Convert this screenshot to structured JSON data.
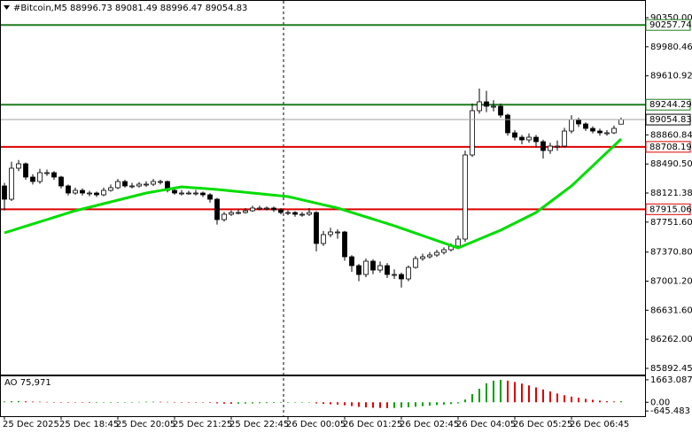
{
  "chart_data": {
    "type": "candlestick",
    "title": "#Bitcoin,M5  88996.73 89081.49 88996.47 89054.83",
    "categories": [
      "25 Dec 2025",
      null,
      null,
      null,
      null,
      null,
      null,
      null,
      "25 Dec 18:45",
      null,
      null,
      null,
      null,
      null,
      null,
      null,
      "25 Dec 20:05",
      null,
      null,
      null,
      null,
      null,
      null,
      null,
      "25 Dec 21:25",
      null,
      null,
      null,
      null,
      null,
      null,
      null,
      "25 Dec 22:45",
      null,
      null,
      null,
      null,
      null,
      null,
      null,
      "26 Dec 00:05",
      null,
      null,
      null,
      null,
      null,
      null,
      null,
      "26 Dec 01:25",
      null,
      null,
      null,
      null,
      null,
      null,
      null,
      "26 Dec 02:45",
      null,
      null,
      null,
      null,
      null,
      null,
      null,
      "26 Dec 04:05",
      null,
      null,
      null,
      null,
      null,
      null,
      null,
      "26 Dec 05:25",
      null,
      null,
      null,
      null,
      null,
      null,
      null,
      "26 Dec 06:45",
      null,
      null,
      null,
      null,
      null,
      null,
      null
    ],
    "open": [
      88211.4,
      88042.5,
      88436.5,
      88492.8,
      88323.9,
      88267.6,
      88380.2,
      88380.2,
      88323.9,
      88211.4,
      88121.3,
      88155.1,
      88121.3,
      88121.3,
      88098.8,
      88155.1,
      88188.8,
      88267.6,
      88211.4,
      88211.4,
      88233.9,
      88233.9,
      88267.6,
      88267.6,
      88155.1,
      88121.3,
      88121.3,
      88121.3,
      88121.3,
      88098.8,
      88042.5,
      87783.6,
      87851.2,
      87873.7,
      87873.7,
      87896.2,
      87930.0,
      87930.0,
      87930.0,
      87907.4,
      87873.7,
      87873.7,
      87851.2,
      87851.2,
      87873.7,
      87479.7,
      87592.3,
      87626.0,
      87626.0,
      87310.9,
      87198.3,
      87085.8,
      87254.6,
      87142.0,
      87198.3,
      87085.8,
      87085.8,
      87029.5,
      87175.8,
      87288.4,
      87310.9,
      87333.4,
      87367.2,
      87400.9,
      87446.0,
      87536.0,
      88605.3,
      89168.1,
      89280.7,
      89224.4,
      89224.4,
      89111.8,
      88886.7,
      88830.4,
      88796.7,
      88830.4,
      88774.2,
      88661.6,
      88717.9,
      88717.9,
      88909.2,
      89055.6,
      88999.3,
      88943.0,
      88909.2,
      88886.7,
      88886.7,
      88996.73
    ],
    "high": [
      88250,
      88520,
      88540,
      88510,
      88360,
      88430,
      88420,
      88400,
      88340,
      88230,
      88190,
      88180,
      88150,
      88140,
      88190,
      88230,
      88300,
      88290,
      88250,
      88260,
      88270,
      88300,
      88290,
      88280,
      88180,
      88160,
      88150,
      88160,
      88140,
      88120,
      88060,
      87880,
      87900,
      87910,
      87930,
      87960,
      87960,
      87950,
      87950,
      87930,
      87900,
      87890,
      87880,
      87930,
      87890,
      87640,
      87680,
      87660,
      87640,
      87330,
      87220,
      87290,
      87280,
      87250,
      87230,
      87150,
      87110,
      87200,
      87320,
      87350,
      87370,
      87400,
      87430,
      87480,
      87580,
      88660,
      89260,
      89450,
      89420,
      89300,
      89260,
      89130,
      88920,
      88860,
      88880,
      88860,
      88800,
      88760,
      88790,
      88950,
      89110,
      89080,
      89020,
      88970,
      88940,
      88920,
      88980,
      89081.49
    ],
    "low": [
      87900,
      88020,
      88400,
      88290,
      88230,
      88240,
      88340,
      88290,
      88180,
      88090,
      88100,
      88090,
      88080,
      88070,
      88080,
      88140,
      88170,
      88190,
      88180,
      88190,
      88200,
      88210,
      88230,
      88130,
      88100,
      88090,
      88100,
      88090,
      88070,
      88000,
      87720,
      87760,
      87830,
      87850,
      87860,
      87880,
      87900,
      87900,
      87880,
      87850,
      87840,
      87820,
      87820,
      87830,
      87380,
      87450,
      87560,
      87540,
      87260,
      87120,
      87000,
      87050,
      87090,
      87110,
      87040,
      87030,
      86920,
      87000,
      87160,
      87260,
      87290,
      87310,
      87340,
      87380,
      87420,
      87500,
      88580,
      89130,
      89150,
      89160,
      89080,
      88850,
      88790,
      88740,
      88760,
      88700,
      88560,
      88620,
      88660,
      88700,
      88880,
      88960,
      88910,
      88880,
      88850,
      88850,
      88870,
      88996.47
    ],
    "close": [
      88042.5,
      88436.5,
      88492.8,
      88323.9,
      88267.6,
      88380.2,
      88380.2,
      88323.9,
      88211.4,
      88121.3,
      88155.1,
      88121.3,
      88121.3,
      88098.8,
      88155.1,
      88188.8,
      88267.6,
      88211.4,
      88211.4,
      88233.9,
      88233.9,
      88267.6,
      88267.6,
      88155.1,
      88121.3,
      88121.3,
      88121.3,
      88121.3,
      88098.8,
      88042.5,
      87783.6,
      87851.2,
      87873.7,
      87873.7,
      87896.2,
      87930.0,
      87930.0,
      87930.0,
      87907.4,
      87873.7,
      87873.7,
      87851.2,
      87851.2,
      87873.7,
      87479.7,
      87592.3,
      87626.0,
      87626.0,
      87310.9,
      87198.3,
      87085.8,
      87254.6,
      87142.0,
      87198.3,
      87085.8,
      87085.8,
      87029.5,
      87175.8,
      87288.4,
      87310.9,
      87333.4,
      87367.2,
      87400.9,
      87446.0,
      87536.0,
      88605.3,
      89168.1,
      89280.7,
      89224.4,
      89224.4,
      89111.8,
      88886.7,
      88830.4,
      88796.7,
      88830.4,
      88774.2,
      88661.6,
      88717.9,
      88717.9,
      88909.2,
      89055.6,
      88999.3,
      88943.0,
      88909.2,
      88886.7,
      88886.7,
      88943.0,
      89054.83
    ],
    "up_color": "#ffffff",
    "down_color": "#000000",
    "wick_color": "#000000",
    "ma": [
      87614.8,
      87642.9,
      87671.1,
      87699.2,
      87727.4,
      87755.5,
      87783.6,
      87811.8,
      87839.9,
      87868.1,
      87896.2,
      87918.7,
      87941.2,
      87963.7,
      87986.3,
      88008.8,
      88031.3,
      88053.8,
      88076.3,
      88098.8,
      88121.3,
      88137.1,
      88152.8,
      88168.6,
      88184.4,
      88200.1,
      88193.4,
      88186.6,
      88179.8,
      88173.1,
      88166.3,
      88157.3,
      88148.3,
      88139.3,
      88130.3,
      88121.3,
      88112.3,
      88103.3,
      88094.3,
      88085.3,
      88076.3,
      88055.4,
      88034.5,
      88013.6,
      87992.7,
      87971.8,
      87950.9,
      87930.0,
      87901.9,
      87873.7,
      87845.6,
      87817.4,
      87789.3,
      87761.1,
      87733.0,
      87704.8,
      87673.5,
      87642.3,
      87611.0,
      87579.7,
      87548.5,
      87517.2,
      87485.9,
      87454.7,
      87423.4,
      87460.9,
      87498.5,
      87536.0,
      87573.5,
      87611.1,
      87648.6,
      87693.6,
      87738.7,
      87783.7,
      87828.7,
      87873.7,
      87941.2,
      88008.8,
      88076.3,
      88143.9,
      88211.4,
      88296.6,
      88381.8,
      88467.0,
      88552.3,
      88637.5,
      88722.7,
      88807.9
    ],
    "ma_color": "#00dd00",
    "ylim": [
      85791.2,
      90518.8
    ],
    "yticks": [
      {
        "value": 90350,
        "label": "90350.00"
      },
      89980.46,
      89610.92,
      88860.84,
      {
        "value": 88490.5,
        "label": "88490.50"
      },
      88121.38,
      {
        "value": 87751.6,
        "label": "87751.60"
      },
      {
        "value": 87370.8,
        "label": "87370.80"
      },
      {
        "value": 87001.2,
        "label": "87001.20"
      },
      {
        "value": 86631.6,
        "label": "86631.60"
      },
      {
        "value": 86262,
        "label": "86262.00"
      },
      85892.45
    ],
    "grid": false,
    "levels": [
      {
        "value": 90257.74,
        "color": "#1e7b1e"
      },
      {
        "value": 89244.29,
        "color": "#1e7b1e"
      },
      {
        "value": 88708.19,
        "color": "#dd0000"
      },
      {
        "value": 87915.06,
        "color": "#dd0000"
      }
    ],
    "price_line_color": "#a0a0a0",
    "ao_label": "AO 75,971",
    "ao": [
      60,
      80,
      90,
      70,
      50,
      40,
      30,
      20,
      10,
      -10,
      -20,
      -30,
      -40,
      -40,
      -30,
      -20,
      0,
      10,
      20,
      30,
      40,
      45,
      40,
      30,
      20,
      10,
      0,
      -10,
      -20,
      -40,
      -80,
      -100,
      -110,
      -100,
      -90,
      -80,
      -70,
      -60,
      -50,
      -40,
      -30,
      -30,
      -20,
      -20,
      -80,
      -120,
      -150,
      -170,
      -220,
      -280,
      -340,
      -380,
      -410,
      -420,
      -430,
      -420,
      -400,
      -370,
      -330,
      -290,
      -250,
      -210,
      -170,
      -130,
      -80,
      200,
      600,
      1000,
      1400,
      1600,
      1663.087,
      1600,
      1500,
      1380,
      1250,
      1100,
      950,
      800,
      650,
      520,
      420,
      330,
      250,
      180,
      120,
      80,
      60,
      75.971
    ],
    "ao_up_color": "#00a000",
    "ao_down_color": "#dd0000",
    "ao_ylim": [
      -1030,
      1920
    ],
    "ao_yticks": [
      1663.087,
      {
        "value": 0,
        "label": "0.00"
      },
      -645.483
    ]
  }
}
